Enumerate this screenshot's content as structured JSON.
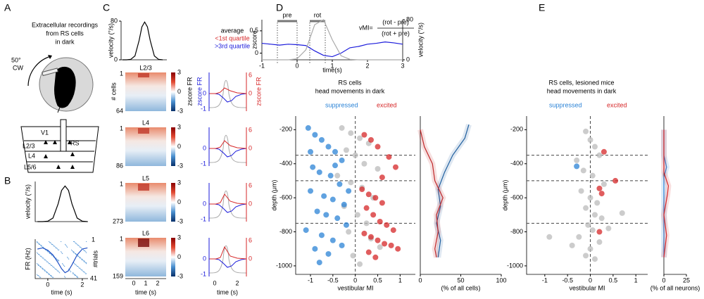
{
  "panel_a": {
    "letter": "A",
    "caption": [
      "Extracellular recordings",
      "from RS cells",
      "in dark"
    ],
    "rotation": [
      "50°",
      "CW"
    ],
    "layers": [
      "V1",
      "L2/3",
      "L4",
      "L5/6"
    ],
    "cell": "RS"
  },
  "panel_b": {
    "letter": "B",
    "trials": [
      1,
      41
    ],
    "trials_label": "#trials"
  },
  "panel_c": {
    "letter": "C",
    "legend_title": "average",
    "legend": [
      "<1st quartile",
      ">3rd quartile"
    ],
    "layers": [
      {
        "name": "L2/3",
        "cells": [
          1,
          64
        ]
      },
      {
        "name": "L4",
        "cells": [
          1,
          86
        ]
      },
      {
        "name": "L5",
        "cells": [
          1,
          273
        ]
      },
      {
        "name": "L6",
        "cells": [
          1,
          159
        ]
      }
    ],
    "cells_label": "# cells",
    "colorbar_label": "zscore FR",
    "colorbar_ticks": [
      3,
      0,
      -3
    ],
    "blue_label": "zscore FR",
    "blue_ticks": [
      0,
      -1
    ],
    "red_label": "zscore FR",
    "red_ticks": [
      6,
      0
    ],
    "heatmap_xticks": [
      0,
      1,
      2
    ],
    "average_xticks": [
      0,
      2
    ],
    "xlabel": "time (s)"
  },
  "panel_d": {
    "letter": "D",
    "windows": [
      "pre",
      "rot"
    ],
    "formula": {
      "lhs": "vMI=",
      "numerator": "(rot - pre)",
      "denominator": "(rot + pre)"
    }
  },
  "panel_e": {
    "letter": "E"
  },
  "chart_data": [
    {
      "type": "line",
      "ylabel": "velocity (°/s)",
      "color": "#000000",
      "xlim": [
        -0.73,
        2.33
      ],
      "ylim": [
        0,
        90
      ],
      "x": [
        -0.6,
        -0.3,
        0,
        0.3,
        0.6,
        0.8,
        1.0,
        1.2,
        1.4,
        1.7,
        2.0,
        2.3
      ],
      "values": [
        0,
        0,
        1,
        8,
        40,
        70,
        80,
        70,
        40,
        8,
        1,
        0
      ]
    },
    {
      "type": "line",
      "ylabel": "FR (Hz)",
      "xlabel": "time (s)",
      "color": "#1f4fc4",
      "xlim": [
        -0.73,
        2.33
      ],
      "ylim": [
        0,
        10
      ],
      "xticks": [
        0,
        2
      ],
      "x": [
        -0.6,
        -0.3,
        0,
        0.3,
        0.6,
        0.8,
        1.0,
        1.2,
        1.4,
        1.7,
        2.0,
        2.3
      ],
      "values": [
        7.5,
        7.8,
        7.2,
        6,
        4,
        2.5,
        1.5,
        2,
        3.5,
        6,
        7.5,
        7.8
      ]
    },
    {
      "type": "line",
      "ylabel": "velocity (°/s)",
      "color": "#000000",
      "xlim": [
        -0.7,
        2.6
      ],
      "ylim": [
        0,
        80
      ],
      "yticks": [
        0,
        80
      ],
      "x": [
        -0.6,
        -0.3,
        0,
        0.3,
        0.6,
        0.8,
        1.0,
        1.2,
        1.4,
        1.7,
        2.0,
        2.3
      ],
      "values": [
        0,
        0,
        1,
        8,
        40,
        68,
        78,
        68,
        40,
        8,
        1,
        0
      ]
    },
    {
      "type": "line",
      "ylabel": "zscore",
      "y2label": "velocity (°/s)",
      "xlabel": "time(s)",
      "xlim": [
        -1,
        3
      ],
      "ylim": [
        -0.15,
        0.75
      ],
      "y2lim": [
        0,
        80
      ],
      "xticks": [
        -1,
        0,
        1,
        2,
        3
      ],
      "yticks": [
        0,
        0.5
      ],
      "y2ticks": [
        0,
        80
      ],
      "x": [
        -1,
        -0.75,
        -0.5,
        -0.25,
        0,
        0.25,
        0.5,
        0.75,
        1,
        1.25,
        1.5,
        1.75,
        2,
        2.25,
        2.5,
        2.75,
        3
      ],
      "series": [
        {
          "color": "#1a1adb",
          "values": [
            0.22,
            0.2,
            0.18,
            0.2,
            0.19,
            0.17,
            0.05,
            -0.05,
            -0.08,
            0.0,
            0.12,
            0.15,
            0.2,
            0.22,
            0.25,
            0.23,
            0.2
          ]
        },
        {
          "color": "#aaaaaa",
          "axis": "y2",
          "values": [
            0,
            0,
            0,
            0,
            2,
            20,
            70,
            80,
            40,
            8,
            1,
            0,
            0,
            0,
            0,
            0,
            0
          ]
        }
      ]
    },
    {
      "type": "scatter",
      "title": [
        "RS cells",
        "head movements in dark"
      ],
      "xlabel": "vestibular MI",
      "ylabel": "depth (μm)",
      "xlim": [
        -1.33,
        1.34
      ],
      "ylim": [
        -1050,
        -120
      ],
      "xticks": [
        -1,
        -0.5,
        0,
        0.5,
        1
      ],
      "yticks": [
        -200,
        -400,
        -600,
        -800,
        -1000
      ],
      "hlines": [
        -350,
        -500,
        -750
      ],
      "vlines": [
        0
      ],
      "series": [
        {
          "color": "#bbbbbb",
          "x": [
            -0.3,
            -0.1,
            0.1,
            0.3,
            -0.2,
            0.0,
            0.2,
            0.5,
            -0.4,
            -0.1,
            0.15,
            0.4,
            -0.25,
            0.05,
            0.25,
            -0.15,
            0.35,
            0.55,
            -0.05,
            0.1
          ],
          "values": [
            -190,
            -220,
            -250,
            -280,
            -320,
            -350,
            -400,
            -430,
            -470,
            -510,
            -540,
            -600,
            -650,
            -700,
            -750,
            -800,
            -840,
            -890,
            -940,
            -990
          ]
        },
        {
          "name": "suppressed",
          "color": "#2b83d6",
          "x": [
            -1.05,
            -0.9,
            -0.75,
            -0.6,
            -0.45,
            -0.3,
            -0.95,
            -0.8,
            -0.55,
            -0.35,
            -1.0,
            -0.7,
            -0.5,
            -0.25,
            -0.85,
            -0.65,
            -0.4,
            -0.2,
            -1.1,
            -0.75,
            -0.5,
            -0.3,
            -0.9,
            -0.6,
            -0.15,
            -0.8,
            -0.45,
            -1.0
          ],
          "values": [
            -190,
            -230,
            -260,
            -300,
            -330,
            -380,
            -420,
            -450,
            -470,
            -520,
            -560,
            -590,
            -610,
            -640,
            -680,
            -700,
            -720,
            -760,
            -790,
            -820,
            -850,
            -880,
            -900,
            -930,
            -560,
            -980,
            -410,
            -330
          ]
        },
        {
          "name": "excited",
          "color": "#d62728",
          "x": [
            0.2,
            0.35,
            0.5,
            0.75,
            0.9,
            0.15,
            0.3,
            0.45,
            0.6,
            0.25,
            0.4,
            0.55,
            0.7,
            0.85,
            0.2,
            0.35,
            0.5,
            0.65,
            0.8,
            0.95,
            0.3,
            0.45,
            0.6
          ],
          "values": [
            -230,
            -260,
            -300,
            -360,
            -420,
            -550,
            -580,
            -600,
            -630,
            -660,
            -700,
            -740,
            -760,
            -790,
            -810,
            -830,
            -850,
            -870,
            -880,
            -900,
            -920,
            -950,
            -480
          ]
        }
      ]
    },
    {
      "type": "profile",
      "xlabel": "(% of all cells)",
      "xlim": [
        0,
        100
      ],
      "ylim": [
        -1050,
        -120
      ],
      "xticks": [
        0,
        50,
        100
      ],
      "series": [
        {
          "color": "#1f5f9f",
          "x": [
            60,
            55,
            40,
            30,
            22,
            25,
            20,
            25,
            22
          ],
          "values": [
            -170,
            -250,
            -350,
            -450,
            -550,
            -650,
            -750,
            -850,
            -950
          ]
        },
        {
          "color": "#c0282a",
          "x": [
            0,
            5,
            15,
            18,
            28,
            20,
            22,
            18,
            20
          ],
          "values": [
            -200,
            -300,
            -400,
            -500,
            -600,
            -700,
            -800,
            -900,
            -950
          ]
        }
      ]
    },
    {
      "type": "scatter",
      "title": [
        "RS cells, lesioned mice",
        "head movements in dark"
      ],
      "xlabel": "vestibular MI",
      "ylabel": "depth (μm)",
      "xlim": [
        -1.4,
        1.26
      ],
      "ylim": [
        -1050,
        -120
      ],
      "xticks": [
        -1,
        -0.5,
        0,
        0.5,
        1
      ],
      "yticks": [
        -200,
        -400,
        -600,
        -800,
        -1000
      ],
      "hlines": [
        -350,
        -500,
        -750
      ],
      "vlines": [
        0
      ],
      "series": [
        {
          "color": "#bbbbbb",
          "x": [
            -0.1,
            0.0,
            0.1,
            0.2,
            -0.3,
            -0.15,
            0.05,
            0.3,
            -0.2,
            0.0,
            0.15,
            -0.1,
            0.1,
            0.25,
            -0.05,
            0.05,
            -0.25,
            0.2,
            0.0,
            -0.9,
            0.7,
            -0.4,
            0.4,
            0.1,
            -0.1
          ],
          "values": [
            -210,
            -260,
            -300,
            -350,
            -380,
            -440,
            -470,
            -520,
            -560,
            -600,
            -630,
            -660,
            -700,
            -720,
            -760,
            -790,
            -830,
            -860,
            -900,
            -830,
            -690,
            -880,
            -780,
            -960,
            -940
          ]
        },
        {
          "name": "suppressed",
          "color": "#2b83d6",
          "x": [
            -0.3
          ],
          "values": [
            -415
          ]
        },
        {
          "name": "excited",
          "color": "#d62728",
          "x": [
            0.3,
            0.55,
            0.2,
            0.25,
            0.2
          ],
          "values": [
            -330,
            -500,
            -545,
            -575,
            -800
          ]
        }
      ]
    },
    {
      "type": "profile",
      "xlabel": "(% of all neurons)",
      "xlim": [
        0,
        25
      ],
      "ylim": [
        -1050,
        -120
      ],
      "xticks": [
        0,
        25
      ],
      "series": [
        {
          "color": "#2b83d6",
          "x": [
            0,
            0,
            3,
            0,
            0,
            0,
            0,
            0
          ],
          "values": [
            -200,
            -350,
            -420,
            -480,
            -600,
            -700,
            -800,
            -950
          ]
        },
        {
          "color": "#d62728",
          "x": [
            0,
            0,
            0,
            5,
            4,
            0,
            3,
            0
          ],
          "values": [
            -200,
            -350,
            -450,
            -530,
            -580,
            -700,
            -820,
            -950
          ]
        }
      ]
    }
  ]
}
